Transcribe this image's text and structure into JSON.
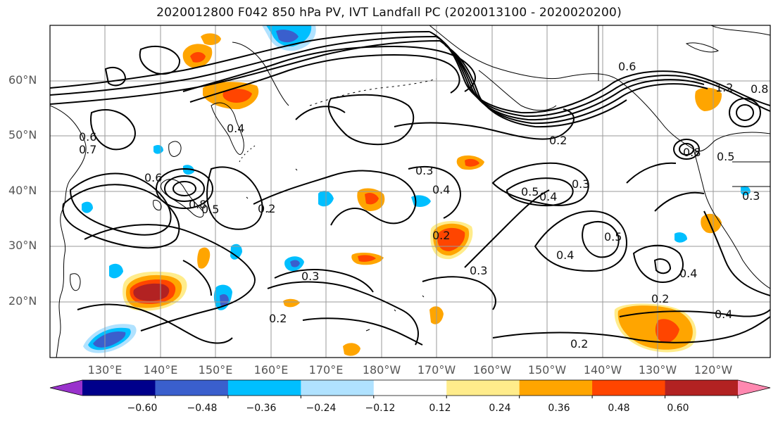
{
  "title": "2020012800 F042 850 hPa PV, IVT Landfall PC (2020013100 - 2020020200)",
  "lat_labels": [
    "60°N",
    "50°N",
    "40°N",
    "30°N",
    "20°N"
  ],
  "lon_labels": [
    "130°E",
    "140°E",
    "150°E",
    "160°E",
    "170°E",
    "180°W",
    "170°W",
    "160°W",
    "150°W",
    "140°W",
    "130°W",
    "120°W"
  ],
  "colorbar": {
    "ticks": [
      "−0.60",
      "−0.48",
      "−0.36",
      "−0.24",
      "−0.12",
      "0.12",
      "0.24",
      "0.36",
      "0.48",
      "0.60"
    ],
    "colors": [
      "#9932cc",
      "#00008b",
      "#3a5fcd",
      "#00bfff",
      "#b0e2ff",
      "#ffffff",
      "#ffec8b",
      "#ffa500",
      "#ff4500",
      "#b22222",
      "#ff88b0"
    ]
  },
  "contour_labels": [
    "0.6",
    "0.7",
    "0.6",
    "0.8",
    "0.5",
    "0.2",
    "0.4",
    "0.3",
    "0.3",
    "0.4",
    "0.2",
    "0.2",
    "0.3",
    "0.5",
    "0.4",
    "0.3",
    "0.2",
    "0.4",
    "0.5",
    "0.4",
    "0.2",
    "0.4",
    "0.2",
    "0.6",
    "0.5",
    "0.8",
    "1.2",
    "0.8",
    "0.3"
  ]
}
